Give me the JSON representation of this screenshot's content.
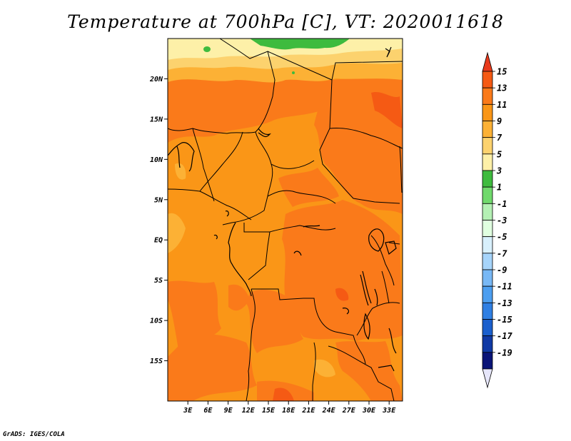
{
  "title": "Temperature at 700hPa [C], VT: 2020011618",
  "credit": "GrADS: IGES/COLA",
  "map": {
    "lon_range": [
      0,
      35
    ],
    "lat_range": [
      -20,
      25
    ],
    "lat_ticks": [
      {
        "value": 20,
        "label": "20N"
      },
      {
        "value": 15,
        "label": "15N"
      },
      {
        "value": 10,
        "label": "10N"
      },
      {
        "value": 5,
        "label": "5N"
      },
      {
        "value": 0,
        "label": "EQ"
      },
      {
        "value": -5,
        "label": "5S"
      },
      {
        "value": -10,
        "label": "10S"
      },
      {
        "value": -15,
        "label": "15S"
      }
    ],
    "lon_ticks": [
      {
        "value": 3,
        "label": "3E"
      },
      {
        "value": 6,
        "label": "6E"
      },
      {
        "value": 9,
        "label": "9E"
      },
      {
        "value": 12,
        "label": "12E"
      },
      {
        "value": 15,
        "label": "15E"
      },
      {
        "value": 18,
        "label": "18E"
      },
      {
        "value": 21,
        "label": "21E"
      },
      {
        "value": 24,
        "label": "24E"
      },
      {
        "value": 27,
        "label": "27E"
      },
      {
        "value": 30,
        "label": "30E"
      },
      {
        "value": 33,
        "label": "33E"
      }
    ]
  },
  "colorbar": {
    "labels": [
      "15",
      "13",
      "11",
      "9",
      "7",
      "5",
      "3",
      "1",
      "-1",
      "-3",
      "-5",
      "-7",
      "-9",
      "-11",
      "-13",
      "-15",
      "-17",
      "-19"
    ],
    "colors_top_to_bottom": [
      "#e83a1c",
      "#f55a14",
      "#fa7a1a",
      "#fa9617",
      "#fcb135",
      "#fcd26e",
      "#fdf0a8",
      "#3ebb3e",
      "#70d96c",
      "#b4f0b4",
      "#e0ffe0",
      "#d8f0fc",
      "#a6d4fa",
      "#78b8f5",
      "#4c9ef0",
      "#2f7fe3",
      "#1a5fcd",
      "#1039a5",
      "#0a1478",
      "#e6e6fa"
    ]
  }
}
